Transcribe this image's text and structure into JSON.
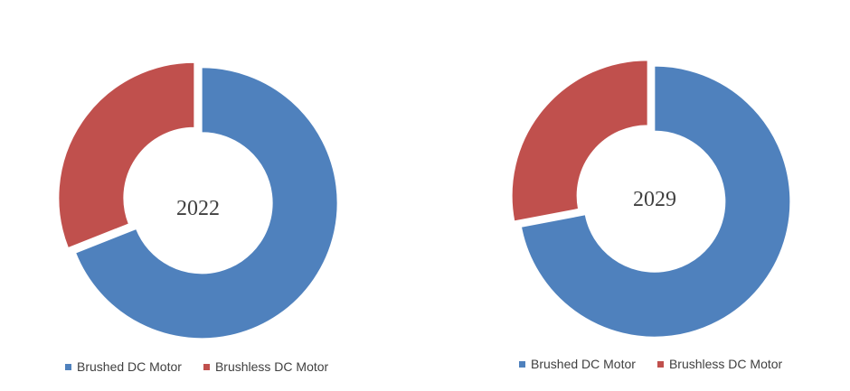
{
  "colors": {
    "brushed": "#4f81bd",
    "brushless": "#c0504d"
  },
  "chart_data": [
    {
      "type": "pie",
      "variant": "donut",
      "center_label": "2022",
      "categories": [
        "Brushed DC Motor",
        "Brushless DC Motor"
      ],
      "values": [
        69,
        31
      ],
      "legend": "bottom"
    },
    {
      "type": "pie",
      "variant": "donut",
      "center_label": "2029",
      "categories": [
        "Brushed DC Motor",
        "Brushless DC Motor"
      ],
      "values": [
        72,
        28
      ],
      "legend": "bottom"
    }
  ]
}
